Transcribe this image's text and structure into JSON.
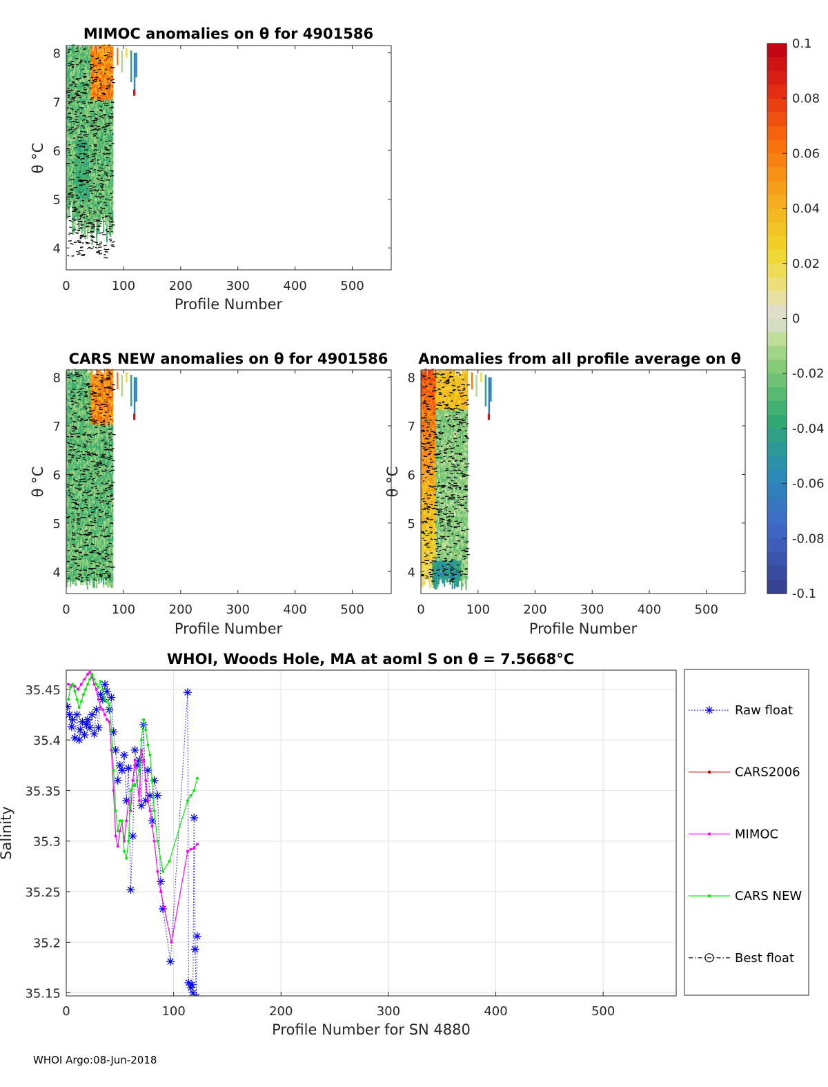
{
  "footer": "WHOI Argo:08-Jun-2018",
  "colorbar": {
    "ticks": [
      "0.1",
      "0.08",
      "0.06",
      "0.04",
      "0.02",
      "0",
      "-0.02",
      "-0.04",
      "-0.06",
      "-0.08",
      "-0.1"
    ],
    "range": [
      -0.1,
      0.1
    ]
  },
  "chart_data": [
    {
      "type": "heatmap",
      "id": "mimoc",
      "title": "MIMOC anomalies on θ  for 4901586",
      "xlabel": "Profile Number",
      "ylabel": "θ °C",
      "xticks": [
        "0",
        "100",
        "200",
        "300",
        "400",
        "500"
      ],
      "yticks": [
        "8",
        "7",
        "6",
        "5",
        "4"
      ],
      "xlim": [
        0,
        568
      ],
      "ylim": [
        3.55,
        8.15
      ]
    },
    {
      "type": "heatmap",
      "id": "cars",
      "title": "CARS NEW anomalies on θ for 4901586",
      "xlabel": "Profile Number",
      "ylabel": "θ °C",
      "xticks": [
        "0",
        "100",
        "200",
        "300",
        "400",
        "500"
      ],
      "yticks": [
        "8",
        "7",
        "6",
        "5",
        "4"
      ],
      "xlim": [
        0,
        568
      ],
      "ylim": [
        3.55,
        8.15
      ]
    },
    {
      "type": "heatmap",
      "id": "allavg",
      "title": "Anomalies from all profile average on θ",
      "xlabel": "Profile Number",
      "ylabel": "θ °C",
      "xticks": [
        "0",
        "100",
        "200",
        "300",
        "400",
        "500"
      ],
      "yticks": [
        "8",
        "7",
        "6",
        "5",
        "4"
      ],
      "xlim": [
        0,
        568
      ],
      "ylim": [
        3.55,
        8.15
      ]
    },
    {
      "type": "line",
      "id": "salinity",
      "title": "WHOI, Woods Hole, MA at aoml S on θ = 7.5668°C",
      "xlabel": "Profile Number for SN 4880",
      "ylabel": "Salinity",
      "xticks": [
        "0",
        "100",
        "200",
        "300",
        "400",
        "500"
      ],
      "yticks": [
        "35.45",
        "35.4",
        "35.35",
        "35.3",
        "35.25",
        "35.2",
        "35.15"
      ],
      "xlim": [
        0,
        568
      ],
      "ylim": [
        35.147,
        35.469
      ],
      "grid": true,
      "legend": [
        "Raw float",
        "CARS2006",
        "MIMOC",
        "CARS NEW",
        "Best float"
      ],
      "series": [
        {
          "name": "Raw float",
          "color": "#0000ff",
          "x": [
            1,
            3,
            5,
            6,
            8,
            10,
            12,
            13,
            15,
            17,
            19,
            20,
            22,
            24,
            26,
            28,
            30,
            32,
            34,
            36,
            38,
            40,
            42,
            44,
            46,
            48,
            50,
            52,
            54,
            56,
            58,
            60,
            62,
            64,
            66,
            68,
            70,
            72,
            74,
            76,
            78,
            80,
            82,
            85,
            88,
            90,
            97,
            113,
            114,
            116,
            117,
            118,
            119,
            120,
            121,
            122
          ],
          "y": [
            35.433,
            35.425,
            35.413,
            35.42,
            35.402,
            35.425,
            35.4,
            35.41,
            35.418,
            35.405,
            35.415,
            35.42,
            35.412,
            35.425,
            35.406,
            35.43,
            35.412,
            35.445,
            35.44,
            35.455,
            35.448,
            35.43,
            35.442,
            35.408,
            35.39,
            35.36,
            35.375,
            35.37,
            35.385,
            35.34,
            35.372,
            35.252,
            35.305,
            35.39,
            35.375,
            35.38,
            35.335,
            35.415,
            35.34,
            35.37,
            35.345,
            35.32,
            35.36,
            35.345,
            35.26,
            35.233,
            35.181,
            35.447,
            35.16,
            35.155,
            35.158,
            35.15,
            35.323,
            35.193,
            35.146,
            35.206
          ]
        },
        {
          "name": "MIMOC",
          "color": "#ff00ff",
          "x": [
            2,
            5,
            8,
            11,
            14,
            17,
            20,
            22,
            24,
            26,
            28,
            30,
            32,
            34,
            36,
            38,
            40,
            42,
            44,
            46,
            48,
            50,
            52,
            54,
            56,
            58,
            60,
            62,
            64,
            66,
            68,
            70,
            72,
            74,
            76,
            78,
            80,
            82,
            85,
            88,
            91,
            98,
            113,
            116,
            119,
            122
          ],
          "y": [
            35.455,
            35.454,
            35.453,
            35.45,
            35.455,
            35.46,
            35.465,
            35.467,
            35.462,
            35.455,
            35.45,
            35.44,
            35.432,
            35.43,
            35.425,
            35.42,
            35.418,
            35.39,
            35.35,
            35.305,
            35.295,
            35.31,
            35.32,
            35.3,
            35.32,
            35.34,
            35.33,
            35.36,
            35.38,
            35.36,
            35.34,
            35.39,
            35.38,
            35.36,
            35.34,
            35.33,
            35.315,
            35.3,
            35.27,
            35.25,
            35.235,
            35.2,
            35.29,
            35.292,
            35.293,
            35.297
          ]
        },
        {
          "name": "CARS NEW",
          "color": "#00ee00",
          "x": [
            2,
            4,
            6,
            8,
            10,
            12,
            14,
            16,
            18,
            20,
            22,
            24,
            26,
            28,
            30,
            32,
            34,
            36,
            38,
            40,
            42,
            44,
            46,
            48,
            50,
            52,
            54,
            56,
            58,
            60,
            62,
            64,
            66,
            68,
            70,
            72,
            74,
            76,
            78,
            80,
            82,
            85,
            90,
            96,
            113,
            116,
            119,
            122
          ],
          "y": [
            35.44,
            35.452,
            35.455,
            35.448,
            35.44,
            35.432,
            35.438,
            35.445,
            35.45,
            35.455,
            35.46,
            35.465,
            35.46,
            35.455,
            35.452,
            35.458,
            35.45,
            35.44,
            35.438,
            35.435,
            35.41,
            35.37,
            35.33,
            35.31,
            35.32,
            35.32,
            35.29,
            35.283,
            35.3,
            35.35,
            35.355,
            35.355,
            35.36,
            35.37,
            35.4,
            35.42,
            35.41,
            35.395,
            35.385,
            35.36,
            35.33,
            35.3,
            35.27,
            35.28,
            35.34,
            35.345,
            35.35,
            35.362
          ]
        }
      ]
    }
  ]
}
